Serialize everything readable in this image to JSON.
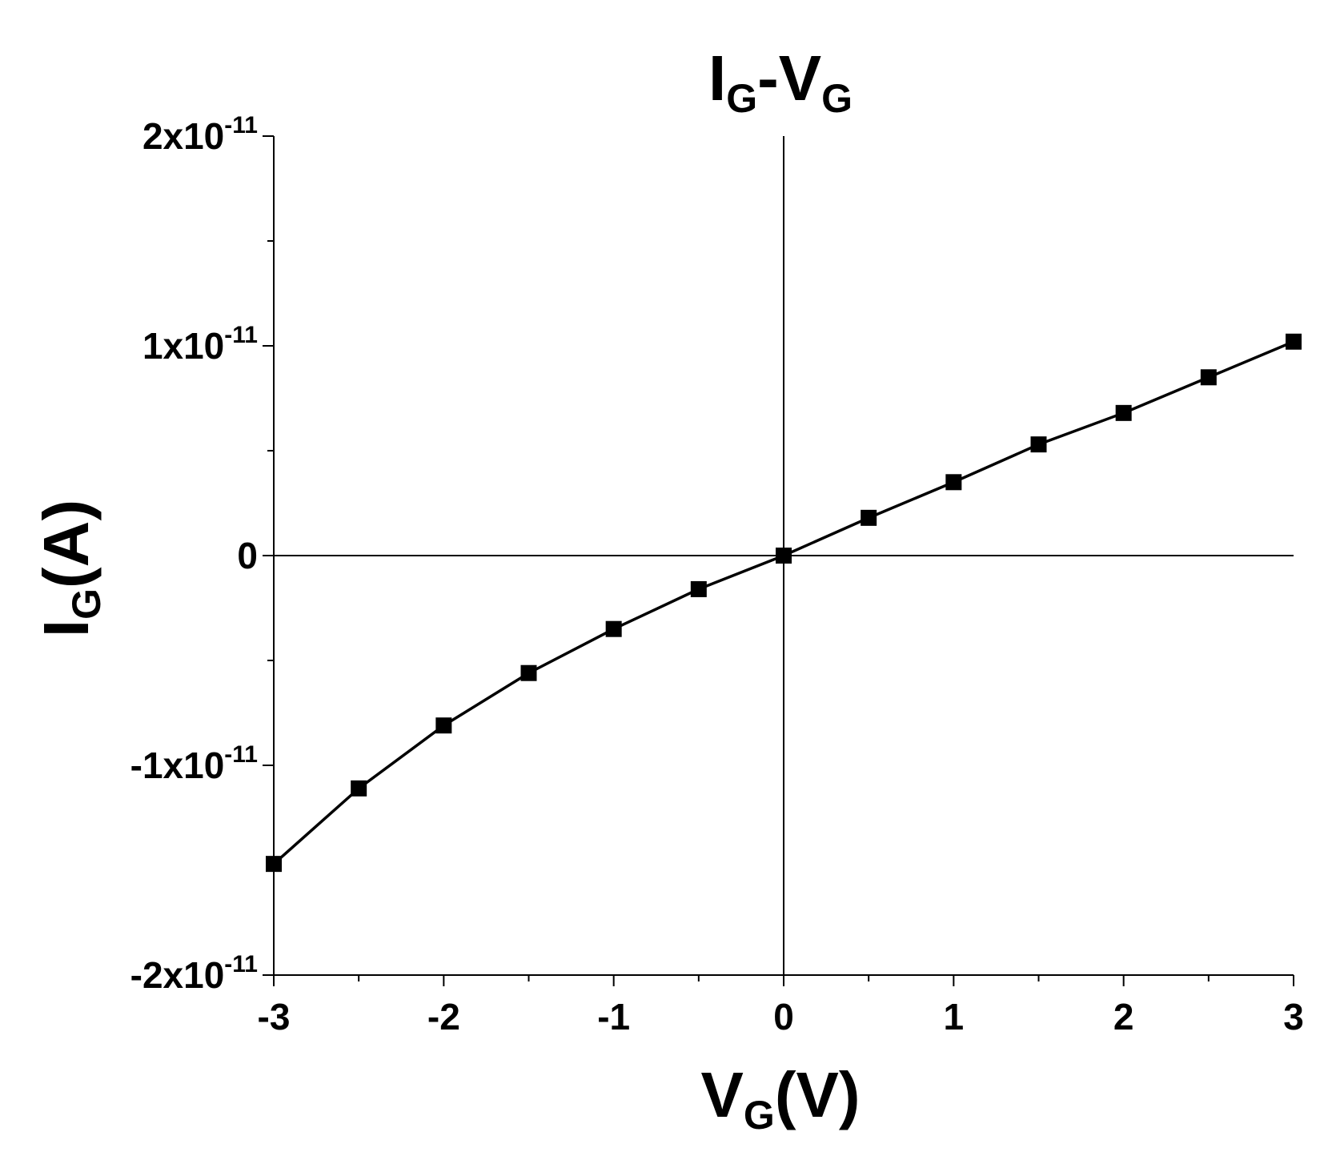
{
  "chart_data": {
    "type": "line",
    "title": {
      "main": "I",
      "sub1": "G",
      "mid": "-V",
      "sub2": "G"
    },
    "xlabel": {
      "main": "V",
      "sub": "G",
      "unit": "(V)"
    },
    "ylabel": {
      "main": "I",
      "sub": "G",
      "unit": "(A)"
    },
    "xlim": [
      -3,
      3
    ],
    "ylim": [
      -2e-11,
      2e-11
    ],
    "x_ticks": [
      {
        "value": -3,
        "label": "-3"
      },
      {
        "value": -2,
        "label": "-2"
      },
      {
        "value": -1,
        "label": "-1"
      },
      {
        "value": 0,
        "label": "0"
      },
      {
        "value": 1,
        "label": "1"
      },
      {
        "value": 2,
        "label": "2"
      },
      {
        "value": 3,
        "label": "3"
      }
    ],
    "y_ticks": [
      {
        "value": 2e-11,
        "mantissa": "2x10",
        "exponent": "-11"
      },
      {
        "value": 1e-11,
        "mantissa": "1x10",
        "exponent": "-11"
      },
      {
        "value": 0,
        "mantissa": "0",
        "exponent": ""
      },
      {
        "value": -1e-11,
        "mantissa": "-1x10",
        "exponent": "-11"
      },
      {
        "value": -2e-11,
        "mantissa": "-2x10",
        "exponent": "-11"
      }
    ],
    "grid": false,
    "zero_lines": true,
    "series": [
      {
        "marker": "square",
        "color": "#000000",
        "x": [
          -3,
          -2.5,
          -2,
          -1.5,
          -1,
          -0.5,
          0,
          0.5,
          1,
          1.5,
          2,
          2.5,
          3
        ],
        "y": [
          -1.47e-11,
          -1.11e-11,
          -8.1e-12,
          -5.6e-12,
          -3.5e-12,
          -1.6e-12,
          0,
          1.8e-12,
          3.5e-12,
          5.3e-12,
          6.8e-12,
          8.5e-12,
          1.02e-11
        ]
      }
    ]
  }
}
